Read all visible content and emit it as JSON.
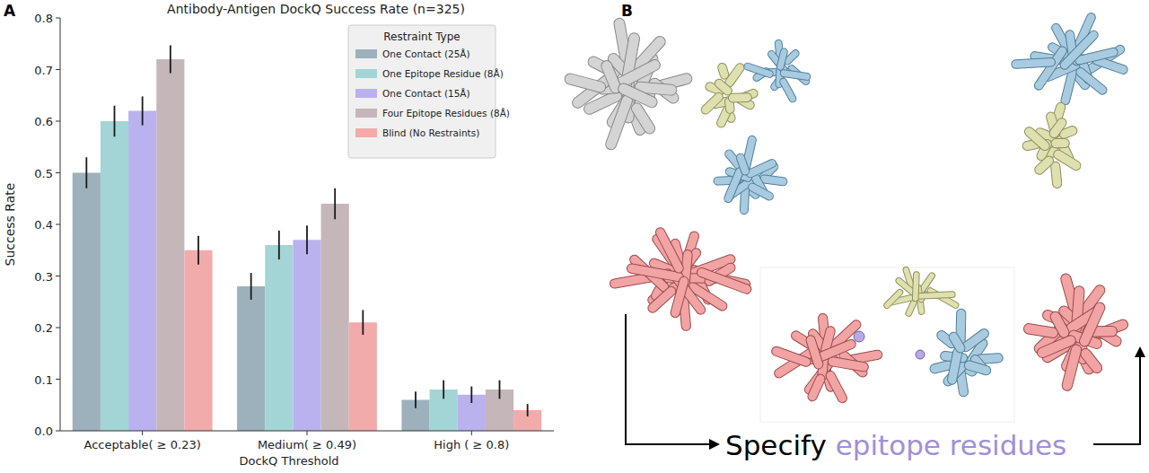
{
  "chart_data": {
    "type": "bar",
    "title": "Antibody-Antigen DockQ Success Rate (n=325)",
    "x_label": "DockQ Threshold",
    "y_label": "Success Rate",
    "legend_title": "Restraint Type",
    "categories": [
      "Acceptable( ≥ 0.23)",
      "Medium( ≥ 0.49)",
      "High ( ≥ 0.8)"
    ],
    "series": [
      {
        "name": "One Contact (25Å)",
        "color": "#9db1bc",
        "values": [
          0.5,
          0.28,
          0.06
        ],
        "errors": [
          0.03,
          0.026,
          0.016
        ]
      },
      {
        "name": "One Epitope Residue (8Å)",
        "color": "#a3d5d6",
        "values": [
          0.6,
          0.36,
          0.08
        ],
        "errors": [
          0.03,
          0.028,
          0.018
        ]
      },
      {
        "name": "One Contact (15Å)",
        "color": "#b9b2ee",
        "values": [
          0.62,
          0.37,
          0.07
        ],
        "errors": [
          0.028,
          0.028,
          0.016
        ]
      },
      {
        "name": "Four Epitope Residues (8Å)",
        "color": "#c5b6b9",
        "values": [
          0.72,
          0.44,
          0.08
        ],
        "errors": [
          0.027,
          0.03,
          0.018
        ]
      },
      {
        "name": "Blind (No Restraints)",
        "color": "#f2abab",
        "values": [
          0.35,
          0.21,
          0.04
        ],
        "errors": [
          0.028,
          0.024,
          0.012
        ]
      }
    ],
    "ylim": [
      0,
      0.8
    ],
    "yticks": [
      {
        "value": 0,
        "label": "0.0"
      },
      0.1,
      0.2,
      0.3,
      0.4,
      0.5,
      0.6,
      0.7,
      0.8
    ],
    "grid": false,
    "legend": "upper right"
  },
  "figure": {
    "panel_labels": [
      "A",
      "B"
    ],
    "annotation": {
      "prefix": "Specify",
      "highlight": "epitope residues"
    }
  }
}
